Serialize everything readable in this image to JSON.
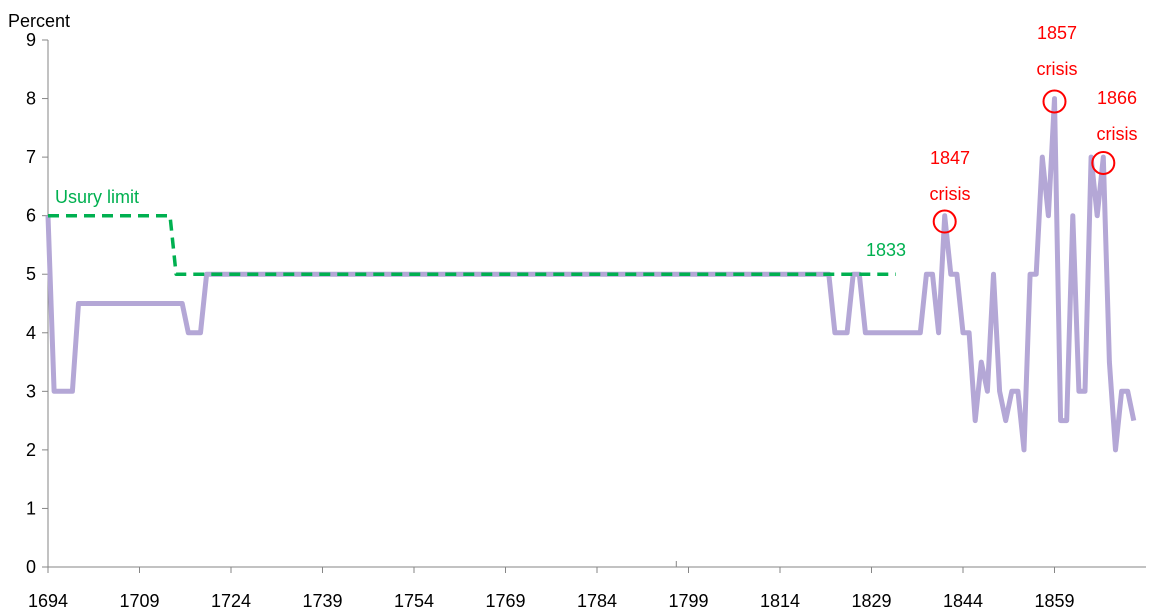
{
  "chart_data": {
    "type": "line",
    "title": "",
    "xlabel": "",
    "ylabel": "Percent",
    "xlim": [
      1694,
      1874
    ],
    "ylim": [
      0,
      9
    ],
    "x_ticks": [
      "1694",
      "1709",
      "1724",
      "1739",
      "1754",
      "1769",
      "1784",
      "1799",
      "1814",
      "1829",
      "1844",
      "1859"
    ],
    "y_ticks": [
      "0",
      "1",
      "2",
      "3",
      "4",
      "5",
      "6",
      "7",
      "8",
      "9"
    ],
    "grid": false,
    "legend": "none",
    "series": [
      {
        "name": "",
        "style": "solid",
        "color": "#b4a7d6",
        "points": [
          [
            1694,
            6
          ],
          [
            1695,
            3
          ],
          [
            1698,
            3
          ],
          [
            1699,
            4.5
          ],
          [
            1716,
            4.5
          ],
          [
            1717,
            4
          ],
          [
            1719,
            4
          ],
          [
            1720,
            5
          ],
          [
            1822,
            5
          ],
          [
            1823,
            4
          ],
          [
            1825,
            4
          ],
          [
            1826,
            5
          ],
          [
            1827,
            5
          ],
          [
            1828,
            4
          ],
          [
            1837,
            4
          ],
          [
            1838,
            5
          ],
          [
            1839,
            5
          ],
          [
            1840,
            4
          ],
          [
            1841,
            6
          ],
          [
            1842,
            5
          ],
          [
            1843,
            5
          ],
          [
            1844,
            4
          ],
          [
            1845,
            4
          ],
          [
            1846,
            2.5
          ],
          [
            1847,
            3.5
          ],
          [
            1848,
            3
          ],
          [
            1849,
            5
          ],
          [
            1850,
            3
          ],
          [
            1851,
            2.5
          ],
          [
            1852,
            3
          ],
          [
            1853,
            3
          ],
          [
            1854,
            2
          ],
          [
            1855,
            5
          ],
          [
            1856,
            5
          ],
          [
            1857,
            7
          ],
          [
            1858,
            6
          ],
          [
            1859,
            8
          ],
          [
            1860,
            2.5
          ],
          [
            1861,
            2.5
          ],
          [
            1862,
            6
          ],
          [
            1863,
            3
          ],
          [
            1864,
            3
          ],
          [
            1865,
            7
          ],
          [
            1866,
            6
          ],
          [
            1867,
            7
          ],
          [
            1868,
            3.5
          ],
          [
            1869,
            2
          ],
          [
            1870,
            3
          ],
          [
            1871,
            3
          ],
          [
            1872,
            2.5
          ]
        ]
      },
      {
        "name": "Usury limit",
        "style": "dashed",
        "color": "#00b050",
        "points": [
          [
            1694,
            6
          ],
          [
            1714,
            6
          ],
          [
            1715,
            5
          ],
          [
            1833,
            5
          ]
        ]
      }
    ],
    "annotations": [
      {
        "id": "usury",
        "text": "Usury limit",
        "color": "#00b050"
      },
      {
        "id": "y1833",
        "text": "1833",
        "color": "#00b050"
      },
      {
        "id": "c1847_year",
        "text": "1847",
        "color": "#ff0000"
      },
      {
        "id": "c1847_word",
        "text": "crisis",
        "color": "#ff0000"
      },
      {
        "id": "c1857_year",
        "text": "1857",
        "color": "#ff0000"
      },
      {
        "id": "c1857_word",
        "text": "crisis",
        "color": "#ff0000"
      },
      {
        "id": "c1866_year",
        "text": "1866",
        "color": "#ff0000"
      },
      {
        "id": "c1866_word",
        "text": "crisis",
        "color": "#ff0000"
      }
    ],
    "crisis_markers": [
      {
        "x": 1841,
        "y": 5.9
      },
      {
        "x": 1859,
        "y": 7.95
      },
      {
        "x": 1867,
        "y": 6.9
      }
    ]
  }
}
